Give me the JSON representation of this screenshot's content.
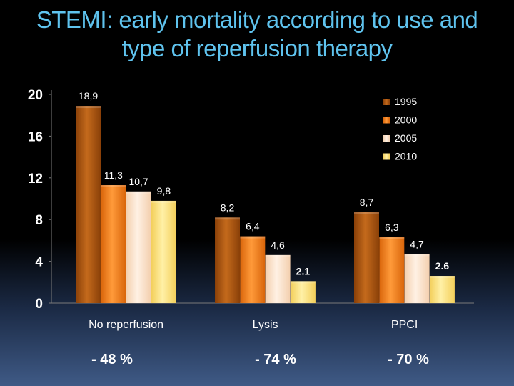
{
  "slide": {
    "title_line1": "STEMI: early mortality according to use and",
    "title_line2": "type of reperfusion therapy"
  },
  "colors": {
    "title": "#5fc3ee",
    "series": [
      "#a0500e",
      "#f07a12",
      "#fde0c6",
      "#fde27a"
    ]
  },
  "chart_data": {
    "type": "bar",
    "categories": [
      "No reperfusion",
      "Lysis",
      "PPCI"
    ],
    "series": [
      {
        "name": "1995",
        "values": [
          18.9,
          8.2,
          8.7
        ],
        "labels": [
          "18,9",
          "8,2",
          "8,7"
        ]
      },
      {
        "name": "2000",
        "values": [
          11.3,
          6.4,
          6.3
        ],
        "labels": [
          "11,3",
          "6,4",
          "6,3"
        ]
      },
      {
        "name": "2005",
        "values": [
          10.7,
          4.6,
          4.7
        ],
        "labels": [
          "10,7",
          "4,6",
          "4,7"
        ]
      },
      {
        "name": "2010",
        "values": [
          9.8,
          2.1,
          2.6
        ],
        "labels": [
          "9,8",
          "2.1",
          "2.6"
        ]
      }
    ],
    "yticks": [
      "0",
      "4",
      "8",
      "12",
      "16",
      "20"
    ],
    "ylim": [
      0,
      20
    ],
    "legend_position": "top-right",
    "grid": false,
    "reductions": [
      "- 48 %",
      "- 74 %",
      "- 70 %"
    ]
  }
}
